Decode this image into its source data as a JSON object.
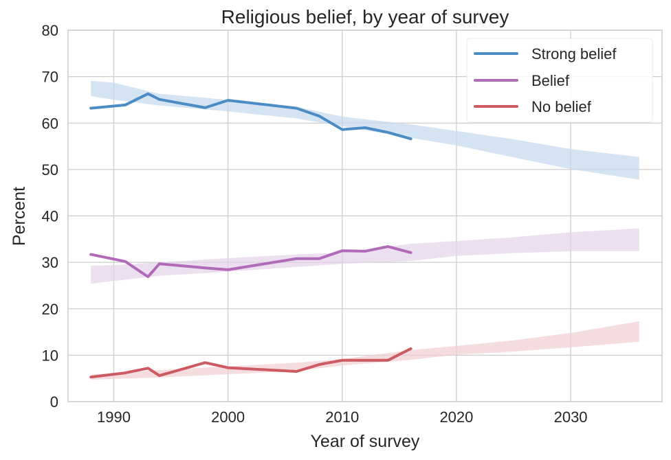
{
  "chart_data": {
    "type": "line",
    "title": "Religious belief, by year of survey",
    "xlabel": "Year of survey",
    "ylabel": "Percent",
    "xlim": [
      1986,
      2038
    ],
    "ylim": [
      0,
      80
    ],
    "xticks": [
      1990,
      2000,
      2010,
      2020,
      2030
    ],
    "yticks": [
      0,
      10,
      20,
      30,
      40,
      50,
      60,
      70,
      80
    ],
    "grid": true,
    "legend_position": "top-right",
    "series": [
      {
        "name": "Strong belief",
        "color": "#4c8cc4",
        "band_color": "#c3d9ec",
        "x": [
          1988,
          1991,
          1993,
          1994,
          1998,
          2000,
          2006,
          2008,
          2010,
          2012,
          2014,
          2016
        ],
        "values": [
          63.2,
          63.9,
          66.3,
          65.1,
          63.3,
          64.9,
          63.2,
          61.5,
          58.6,
          59.0,
          58.0,
          56.6
        ],
        "band": {
          "x": [
            1988,
            1990,
            1994,
            2000,
            2006,
            2010,
            2016,
            2020,
            2025,
            2030,
            2036
          ],
          "upper": [
            69.1,
            68.7,
            66.3,
            65.0,
            63.5,
            61.4,
            59.7,
            58.3,
            56.5,
            54.4,
            52.7
          ],
          "lower": [
            65.8,
            65.0,
            63.8,
            62.5,
            61.0,
            59.3,
            56.8,
            55.2,
            52.6,
            50.1,
            47.8
          ]
        }
      },
      {
        "name": "Belief",
        "color": "#b06ab8",
        "band_color": "#e4d2e8",
        "x": [
          1988,
          1991,
          1993,
          1994,
          1998,
          2000,
          2006,
          2008,
          2010,
          2012,
          2014,
          2016
        ],
        "values": [
          31.7,
          30.2,
          26.9,
          29.7,
          28.8,
          28.4,
          30.8,
          30.8,
          32.5,
          32.4,
          33.4,
          32.1
        ],
        "band": {
          "x": [
            1988,
            1990,
            1994,
            2000,
            2006,
            2010,
            2016,
            2020,
            2025,
            2030,
            2036
          ],
          "upper": [
            29.3,
            29.4,
            30.0,
            30.9,
            31.7,
            32.1,
            34.0,
            34.6,
            35.4,
            36.5,
            37.3
          ],
          "lower": [
            25.4,
            26.0,
            27.1,
            28.0,
            29.0,
            29.7,
            30.3,
            31.4,
            32.0,
            32.4,
            32.4
          ]
        }
      },
      {
        "name": "No belief",
        "color": "#cc5a60",
        "band_color": "#f1cfd2",
        "x": [
          1988,
          1991,
          1993,
          1994,
          1998,
          2000,
          2006,
          2008,
          2010,
          2012,
          2014,
          2016
        ],
        "values": [
          5.3,
          6.2,
          7.2,
          5.6,
          8.4,
          7.3,
          6.5,
          8.0,
          8.9,
          8.9,
          8.9,
          11.4
        ],
        "band": {
          "x": [
            1988,
            1990,
            1994,
            2000,
            2006,
            2010,
            2016,
            2020,
            2025,
            2030,
            2036
          ],
          "upper": [
            5.8,
            6.2,
            6.8,
            7.6,
            8.4,
            9.2,
            11.1,
            12.0,
            13.2,
            14.8,
            17.3
          ],
          "lower": [
            4.7,
            4.9,
            5.2,
            5.9,
            6.6,
            7.8,
            9.0,
            10.1,
            10.8,
            11.7,
            12.9
          ]
        }
      }
    ]
  }
}
